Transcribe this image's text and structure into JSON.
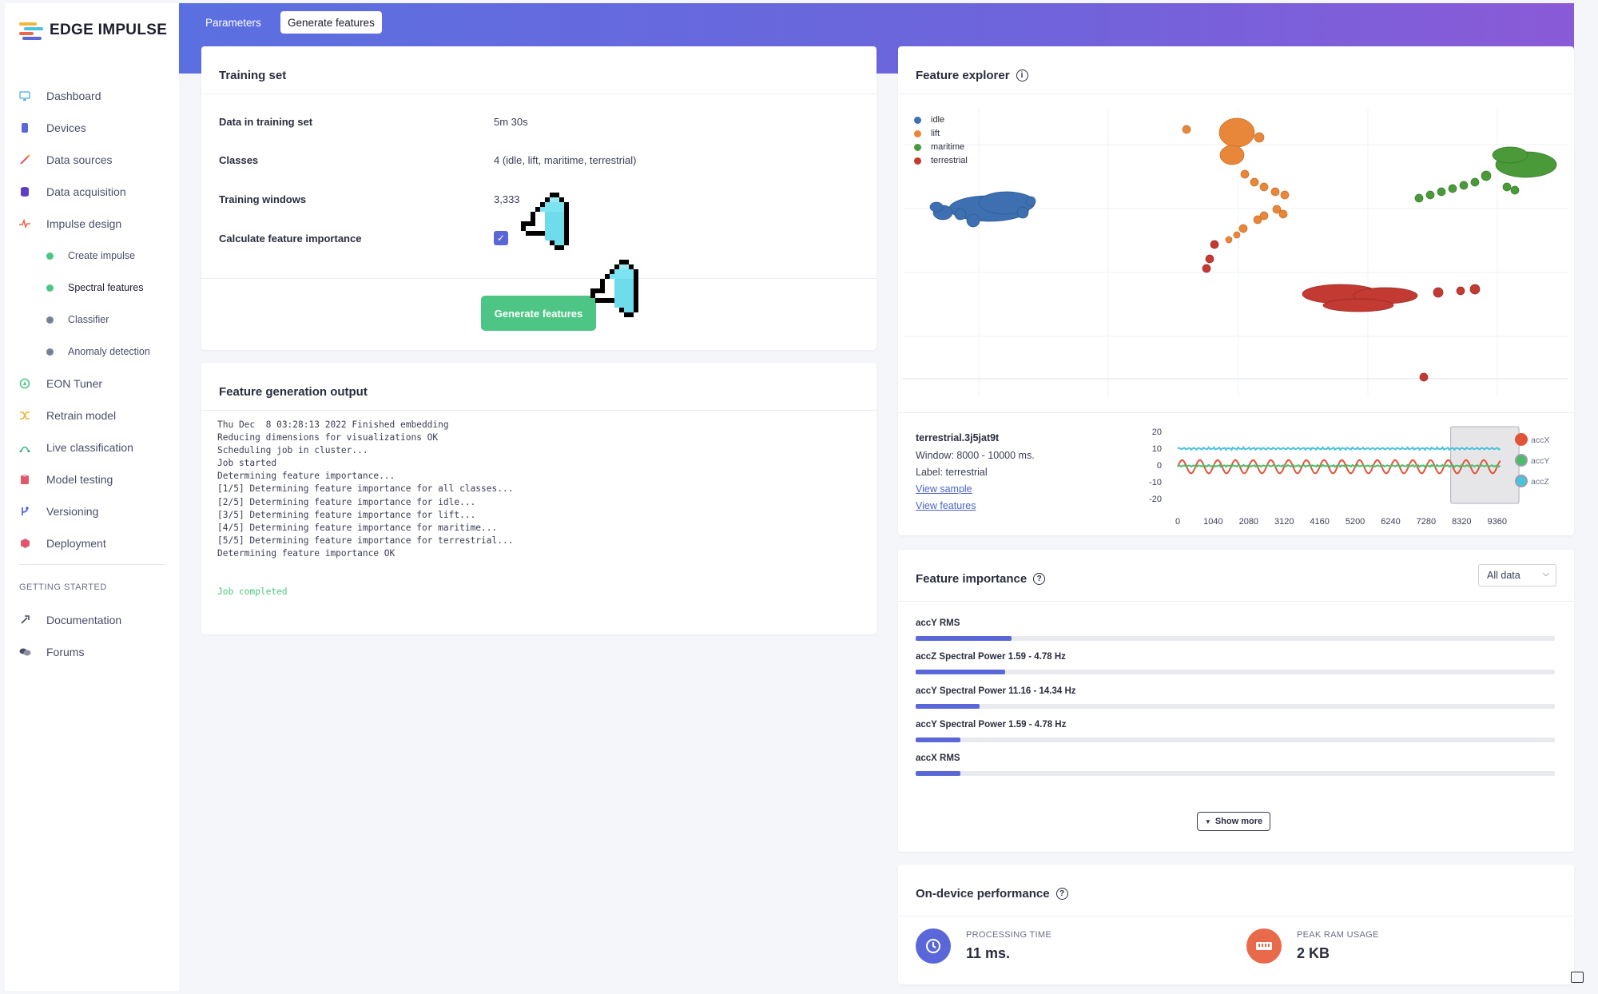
{
  "brand": {
    "name": "EDGE IMPULSE"
  },
  "sidebar": {
    "items": [
      {
        "label": "Dashboard",
        "icon": "monitor-icon",
        "color": "#64b5e6"
      },
      {
        "label": "Devices",
        "icon": "device-icon",
        "color": "#5a67d8"
      },
      {
        "label": "Data sources",
        "icon": "wand-icon",
        "color": "#e0566c"
      },
      {
        "label": "Data acquisition",
        "icon": "database-icon",
        "color": "#5b3fc4"
      },
      {
        "label": "Impulse design",
        "icon": "pulse-icon",
        "color": "#e96a4a"
      }
    ],
    "subitems": [
      {
        "label": "Create impulse",
        "dot_color": "#4dc685"
      },
      {
        "label": "Spectral features",
        "dot_color": "#4dc685"
      },
      {
        "label": "Classifier",
        "dot_color": "#7a8094"
      },
      {
        "label": "Anomaly detection",
        "dot_color": "#7a8094"
      }
    ],
    "items2": [
      {
        "label": "EON Tuner",
        "icon": "compass-icon",
        "color": "#4dc685"
      },
      {
        "label": "Retrain model",
        "icon": "shuffle-icon",
        "color": "#f0b63a"
      },
      {
        "label": "Live classification",
        "icon": "live-icon",
        "color": "#36b37e"
      },
      {
        "label": "Model testing",
        "icon": "clipboard-icon",
        "color": "#e0566c"
      },
      {
        "label": "Versioning",
        "icon": "branch-icon",
        "color": "#5a67d8"
      },
      {
        "label": "Deployment",
        "icon": "package-icon",
        "color": "#e0566c"
      }
    ],
    "section_label": "GETTING STARTED",
    "help_items": [
      {
        "label": "Documentation",
        "icon": "rocket-icon"
      },
      {
        "label": "Forums",
        "icon": "chat-bubbles-icon"
      }
    ]
  },
  "header": {
    "tabs": [
      "Parameters",
      "Generate features"
    ],
    "active_tab": "Generate features"
  },
  "training_set": {
    "title": "Training set",
    "rows": [
      {
        "label": "Data in training set",
        "value": "5m 30s"
      },
      {
        "label": "Classes",
        "value": "4 (idle, lift, maritime, terrestrial)"
      },
      {
        "label": "Training windows",
        "value": "3,333"
      },
      {
        "label": "Calculate feature importance",
        "checked": true
      }
    ],
    "button": "Generate features"
  },
  "output": {
    "title": "Feature generation output",
    "lines": [
      "Thu Dec  8 03:28:13 2022 Finished embedding",
      "Reducing dimensions for visualizations OK",
      "",
      "Scheduling job in cluster...",
      "Job started",
      "Determining feature importance...",
      "[1/5] Determining feature importance for all classes...",
      "[2/5] Determining feature importance for idle...",
      "[3/5] Determining feature importance for lift...",
      "[4/5] Determining feature importance for maritime...",
      "[5/5] Determining feature importance for terrestrial...",
      "Determining feature importance OK"
    ],
    "completed": "Job completed"
  },
  "explorer": {
    "title": "Feature explorer",
    "legend": [
      {
        "name": "idle",
        "color": "#3e6fb0"
      },
      {
        "name": "lift",
        "color": "#e8873a"
      },
      {
        "name": "maritime",
        "color": "#4a9a3a"
      },
      {
        "name": "terrestrial",
        "color": "#c23a32"
      }
    ],
    "sample": {
      "name": "terrestrial.3j5jat9t",
      "window": "Window: 8000 - 10000 ms.",
      "label": "Label: terrestrial",
      "view_sample": "View sample",
      "view_features": "View features"
    }
  },
  "chart_data": {
    "type": "line",
    "x_ticks": [
      "0",
      "1040",
      "2080",
      "3120",
      "4160",
      "5200",
      "6240",
      "7280",
      "8320",
      "9360"
    ],
    "y_ticks": [
      "20",
      "10",
      "0",
      "-10",
      "-20"
    ],
    "xlim": [
      0,
      9600
    ],
    "ylim": [
      -20,
      20
    ],
    "highlight_window": [
      8000,
      10000
    ],
    "series": [
      {
        "name": "accX",
        "color": "#e0553a",
        "level": 0,
        "amplitude": 4
      },
      {
        "name": "accY",
        "color": "#4dbb6a",
        "level": -0.5,
        "amplitude": 0.6
      },
      {
        "name": "accZ",
        "color": "#4ac3dd",
        "level": 9.8,
        "amplitude": 0.8
      }
    ]
  },
  "importance": {
    "title": "Feature importance",
    "filter": "All data",
    "features": [
      {
        "label": "accY RMS",
        "value": 0.15
      },
      {
        "label": "accZ Spectral Power 1.59 - 4.78 Hz",
        "value": 0.14
      },
      {
        "label": "accY Spectral Power 11.16 - 14.34 Hz",
        "value": 0.1
      },
      {
        "label": "accY Spectral Power 1.59 - 4.78 Hz",
        "value": 0.07
      },
      {
        "label": "accX RMS",
        "value": 0.07
      }
    ],
    "show_more": "Show more"
  },
  "performance": {
    "title": "On-device performance",
    "processing_label": "PROCESSING TIME",
    "processing_value": "11 ms.",
    "processing_color": "#5a67d8",
    "ram_label": "PEAK RAM USAGE",
    "ram_value": "2 KB",
    "ram_color": "#e96a4a"
  }
}
